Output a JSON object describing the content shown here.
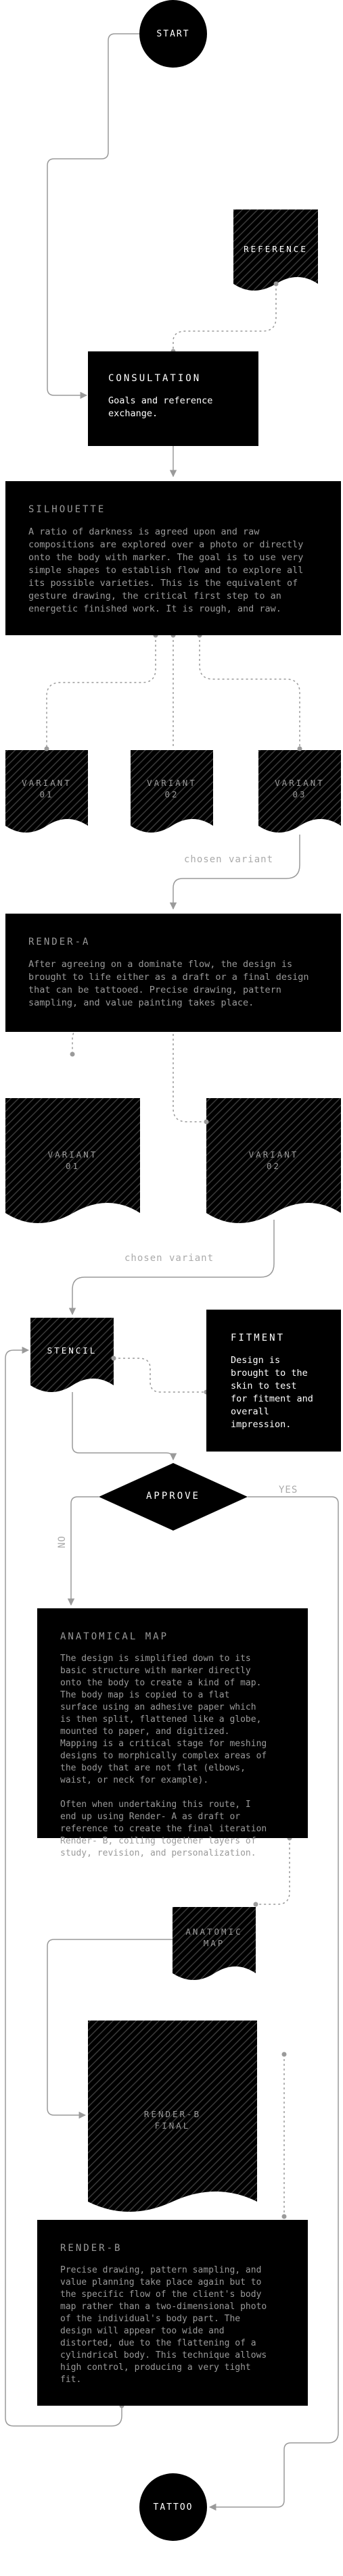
{
  "colors": {
    "node": "#000000",
    "line": "#9a9a9a",
    "dotted": "#9a9a9a",
    "page": "#ffffff",
    "muted_text": "#9a9a9a"
  },
  "nodes": {
    "start": {
      "label": "START"
    },
    "reference": {
      "label": "REFERENCE"
    },
    "consultation": {
      "title": "CONSULTATION",
      "body": "Goals and reference\nexchange."
    },
    "silhouette": {
      "title": "SILHOUETTE",
      "body": "A ratio of darkness is agreed upon and raw\ncompositions are explored over a photo or directly\nonto the body with marker. The goal is to use very\nsimple shapes to establish flow and to explore all\nits possible varieties. This is the equivalent of\ngesture drawing, the critical first step to an\nenergetic finished work. It is rough, and raw."
    },
    "variant_a1": {
      "label": "VARIANT\n01"
    },
    "variant_a2": {
      "label": "VARIANT\n02"
    },
    "variant_a3": {
      "label": "VARIANT\n03"
    },
    "render_a": {
      "title": "RENDER-A",
      "body": "After agreeing on a dominate flow, the design is\nbrought to life either as a draft or a final design\nthat can be tattooed. Precise drawing, pattern\nsampling, and value painting takes place."
    },
    "variant_b1": {
      "label": "VARIANT\n01"
    },
    "variant_b2": {
      "label": "VARIANT\n02"
    },
    "stencil": {
      "label": "STENCIL"
    },
    "fitment": {
      "title": "FITMENT",
      "body": "Design is\nbrought to the\nskin to test\nfor fitment and\noverall\nimpression."
    },
    "approve": {
      "label": "APPROVE"
    },
    "anatomical_map": {
      "title": "ANATOMICAL MAP",
      "body": "The design is simplified down to its\nbasic structure with marker directly\nonto the body to create a kind of map.\nThe body map is copied to a flat\nsurface using an adhesive paper which\nis then split, flattened like a globe,\nmounted to paper, and digitized.\nMapping is a critical stage for meshing\ndesigns to morphically complex areas of\nthe body that are not flat (elbows,\nwaist, or neck for example).\n\nOften when undertaking this route, I\nend up using Render- A as draft or\nreference to create the final iteration\nRender- B, coiling together layers of\nstudy, revision, and personalization."
    },
    "anatomic_map_doc": {
      "label": "ANATOMIC\nMAP"
    },
    "render_b_final": {
      "label": "RENDER-B\nFINAL"
    },
    "render_b": {
      "title": "RENDER-B",
      "body": "Precise drawing, pattern sampling, and\nvalue planning take place again but to\nthe specific flow of the client's body\nmap rather than a two-dimensional photo\nof the individual's body part. The\ndesign will appear too wide and\ndistorted, due to the flattening of a\ncylindrical body. This technique allows\nhigh control, producing a very tight\nfit."
    },
    "tattoo": {
      "label": "TATTOO"
    }
  },
  "edge_labels": {
    "chosen_variant_1": "chosen variant",
    "chosen_variant_2": "chosen variant",
    "no": "NO",
    "yes": "YES"
  }
}
